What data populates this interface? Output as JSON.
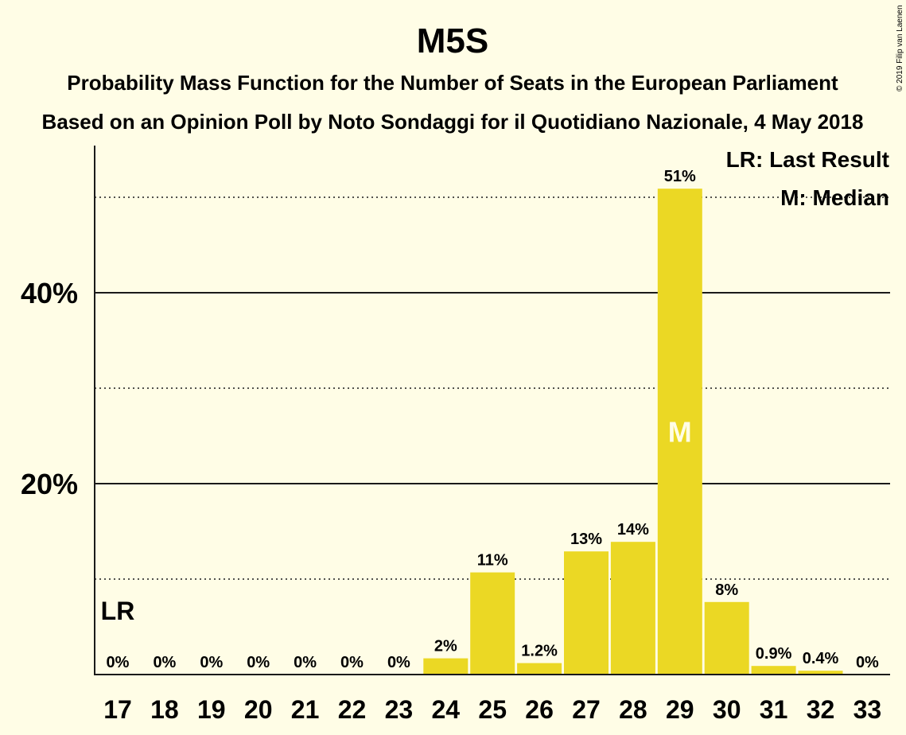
{
  "chart_data": {
    "type": "bar",
    "title": "M5S",
    "subtitle": "Probability Mass Function for the Number of Seats in the European Parliament",
    "subtitle2": "Based on an Opinion Poll by Noto Sondaggi for il Quotidiano Nazionale, 4 May 2018",
    "categories": [
      "17",
      "18",
      "19",
      "20",
      "21",
      "22",
      "23",
      "24",
      "25",
      "26",
      "27",
      "28",
      "29",
      "30",
      "31",
      "32",
      "33"
    ],
    "values": [
      0,
      0,
      0,
      0,
      0,
      0,
      0,
      1.7,
      10.7,
      1.2,
      12.9,
      13.9,
      50.9,
      7.6,
      0.9,
      0.4,
      0
    ],
    "data_labels": [
      "0%",
      "0%",
      "0%",
      "0%",
      "0%",
      "0%",
      "0%",
      "2%",
      "11%",
      "1.2%",
      "13%",
      "14%",
      "51%",
      "8%",
      "0.9%",
      "0.4%",
      "0%"
    ],
    "ylim": [
      0,
      55
    ],
    "yticks": [
      20,
      40
    ],
    "ytick_labels": [
      "20%",
      "40%"
    ],
    "dotted_gridlines": [
      10,
      30,
      50
    ],
    "solid_gridlines": [
      20,
      40
    ],
    "last_result_category": "17",
    "last_result_marker": "LR",
    "median_category": "29",
    "median_marker": "M",
    "legend": [
      "LR: Last Result",
      "M: Median"
    ],
    "legend_position": "top-right",
    "bar_color": "#ebd824"
  },
  "copyright": "© 2019 Filip van Laenen"
}
